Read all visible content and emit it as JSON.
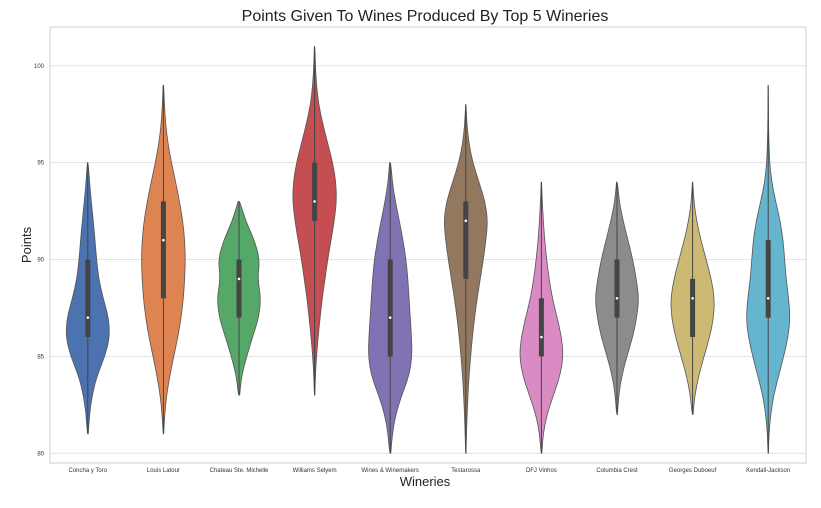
{
  "chart_data": {
    "type": "violin",
    "title": "Points Given To Wines Produced By Top 5 Wineries",
    "xlabel": "Wineries",
    "ylabel": "Points",
    "ylim": [
      79.5,
      102
    ],
    "yticks": [
      80,
      85,
      90,
      95,
      100
    ],
    "grid": true,
    "legend": "none",
    "series": [
      {
        "category": "Concha y Toro",
        "color": "#4c72b0",
        "min": 81,
        "max": 95,
        "q1": 86,
        "median": 87,
        "q3": 90,
        "density": [
          [
            81,
            0.02
          ],
          [
            82,
            0.08
          ],
          [
            83,
            0.2
          ],
          [
            84,
            0.42
          ],
          [
            85,
            0.78
          ],
          [
            86,
            1.0
          ],
          [
            87,
            0.95
          ],
          [
            88,
            0.7
          ],
          [
            89,
            0.5
          ],
          [
            90,
            0.4
          ],
          [
            91,
            0.33
          ],
          [
            92,
            0.25
          ],
          [
            93,
            0.16
          ],
          [
            94,
            0.08
          ],
          [
            95,
            0.02
          ]
        ]
      },
      {
        "category": "Louis Latour",
        "color": "#dd8452",
        "min": 81,
        "max": 99,
        "q1": 88,
        "median": 91,
        "q3": 93,
        "density": [
          [
            81,
            0.01
          ],
          [
            82,
            0.04
          ],
          [
            83,
            0.1
          ],
          [
            84,
            0.2
          ],
          [
            85,
            0.32
          ],
          [
            86,
            0.45
          ],
          [
            87,
            0.55
          ],
          [
            88,
            0.62
          ],
          [
            89,
            0.66
          ],
          [
            90,
            0.68
          ],
          [
            91,
            0.66
          ],
          [
            92,
            0.6
          ],
          [
            93,
            0.5
          ],
          [
            94,
            0.38
          ],
          [
            95,
            0.25
          ],
          [
            96,
            0.14
          ],
          [
            97,
            0.07
          ],
          [
            98,
            0.03
          ],
          [
            99,
            0.01
          ]
        ]
      },
      {
        "category": "Chateau Ste. Michelle",
        "color": "#55a868",
        "min": 83,
        "max": 93,
        "q1": 87,
        "median": 89,
        "q3": 90,
        "density": [
          [
            83,
            0.03
          ],
          [
            84,
            0.12
          ],
          [
            85,
            0.35
          ],
          [
            86,
            0.62
          ],
          [
            87,
            0.9
          ],
          [
            88,
            1.0
          ],
          [
            89,
            0.85
          ],
          [
            90,
            0.95
          ],
          [
            91,
            0.7
          ],
          [
            92,
            0.3
          ],
          [
            93,
            0.04
          ]
        ]
      },
      {
        "category": "Williams Selyem",
        "color": "#c44e52",
        "min": 83,
        "max": 101,
        "q1": 92,
        "median": 93,
        "q3": 95,
        "density": [
          [
            83,
            0.01
          ],
          [
            84,
            0.03
          ],
          [
            85,
            0.07
          ],
          [
            86,
            0.13
          ],
          [
            87,
            0.2
          ],
          [
            88,
            0.28
          ],
          [
            89,
            0.38
          ],
          [
            90,
            0.48
          ],
          [
            91,
            0.6
          ],
          [
            92,
            0.72
          ],
          [
            93,
            0.8
          ],
          [
            94,
            0.78
          ],
          [
            95,
            0.66
          ],
          [
            96,
            0.48
          ],
          [
            97,
            0.3
          ],
          [
            98,
            0.15
          ],
          [
            99,
            0.07
          ],
          [
            100,
            0.03
          ],
          [
            101,
            0.01
          ]
        ]
      },
      {
        "category": "Wines & Winemakers",
        "color": "#8172b3",
        "min": 80,
        "max": 95,
        "q1": 85,
        "median": 87,
        "q3": 90,
        "density": [
          [
            80,
            0.02
          ],
          [
            81,
            0.07
          ],
          [
            82,
            0.18
          ],
          [
            83,
            0.38
          ],
          [
            84,
            0.62
          ],
          [
            85,
            0.72
          ],
          [
            86,
            0.7
          ],
          [
            87,
            0.66
          ],
          [
            88,
            0.62
          ],
          [
            89,
            0.58
          ],
          [
            90,
            0.52
          ],
          [
            91,
            0.42
          ],
          [
            92,
            0.3
          ],
          [
            93,
            0.17
          ],
          [
            94,
            0.07
          ],
          [
            95,
            0.02
          ]
        ]
      },
      {
        "category": "Testarossa",
        "color": "#937860",
        "min": 80,
        "max": 98,
        "q1": 89,
        "median": 92,
        "q3": 93,
        "density": [
          [
            80,
            0.01
          ],
          [
            81,
            0.03
          ],
          [
            82,
            0.06
          ],
          [
            83,
            0.1
          ],
          [
            84,
            0.15
          ],
          [
            85,
            0.22
          ],
          [
            86,
            0.3
          ],
          [
            87,
            0.4
          ],
          [
            88,
            0.52
          ],
          [
            89,
            0.66
          ],
          [
            90,
            0.8
          ],
          [
            91,
            0.92
          ],
          [
            92,
            1.0
          ],
          [
            93,
            0.88
          ],
          [
            94,
            0.6
          ],
          [
            95,
            0.32
          ],
          [
            96,
            0.14
          ],
          [
            97,
            0.05
          ],
          [
            98,
            0.01
          ]
        ]
      },
      {
        "category": "DFJ Vinhos",
        "color": "#da8bc3",
        "min": 80,
        "max": 94,
        "q1": 85,
        "median": 86,
        "q3": 88,
        "density": [
          [
            80,
            0.02
          ],
          [
            81,
            0.08
          ],
          [
            82,
            0.25
          ],
          [
            83,
            0.55
          ],
          [
            84,
            0.85
          ],
          [
            85,
            1.0
          ],
          [
            86,
            0.92
          ],
          [
            87,
            0.72
          ],
          [
            88,
            0.5
          ],
          [
            89,
            0.35
          ],
          [
            90,
            0.24
          ],
          [
            91,
            0.15
          ],
          [
            92,
            0.09
          ],
          [
            93,
            0.04
          ],
          [
            94,
            0.01
          ]
        ]
      },
      {
        "category": "Columbia Crest",
        "color": "#8c8c8c",
        "min": 82,
        "max": 94,
        "q1": 87,
        "median": 88,
        "q3": 90,
        "density": [
          [
            82,
            0.02
          ],
          [
            83,
            0.08
          ],
          [
            84,
            0.22
          ],
          [
            85,
            0.45
          ],
          [
            86,
            0.72
          ],
          [
            87,
            0.9
          ],
          [
            88,
            1.0
          ],
          [
            89,
            0.88
          ],
          [
            90,
            0.72
          ],
          [
            91,
            0.5
          ],
          [
            92,
            0.28
          ],
          [
            93,
            0.1
          ],
          [
            94,
            0.02
          ]
        ]
      },
      {
        "category": "Georges Duboeuf",
        "color": "#ccb974",
        "min": 82,
        "max": 94,
        "q1": 86,
        "median": 88,
        "q3": 89,
        "density": [
          [
            82,
            0.02
          ],
          [
            83,
            0.1
          ],
          [
            84,
            0.28
          ],
          [
            85,
            0.52
          ],
          [
            86,
            0.78
          ],
          [
            87,
            0.96
          ],
          [
            88,
            1.0
          ],
          [
            89,
            0.85
          ],
          [
            90,
            0.62
          ],
          [
            91,
            0.38
          ],
          [
            92,
            0.18
          ],
          [
            93,
            0.06
          ],
          [
            94,
            0.01
          ]
        ]
      },
      {
        "category": "Kendall-Jackson",
        "color": "#64b5cd",
        "min": 80,
        "max": 99,
        "q1": 87,
        "median": 88,
        "q3": 91,
        "density": [
          [
            80,
            0.01
          ],
          [
            81,
            0.03
          ],
          [
            82,
            0.1
          ],
          [
            83,
            0.22
          ],
          [
            84,
            0.42
          ],
          [
            85,
            0.62
          ],
          [
            86,
            0.8
          ],
          [
            87,
            0.88
          ],
          [
            88,
            0.82
          ],
          [
            89,
            0.72
          ],
          [
            90,
            0.66
          ],
          [
            91,
            0.6
          ],
          [
            92,
            0.48
          ],
          [
            93,
            0.3
          ],
          [
            94,
            0.14
          ],
          [
            95,
            0.06
          ],
          [
            96,
            0.03
          ],
          [
            97,
            0.015
          ],
          [
            98,
            0.008
          ],
          [
            99,
            0.003
          ]
        ]
      }
    ]
  }
}
